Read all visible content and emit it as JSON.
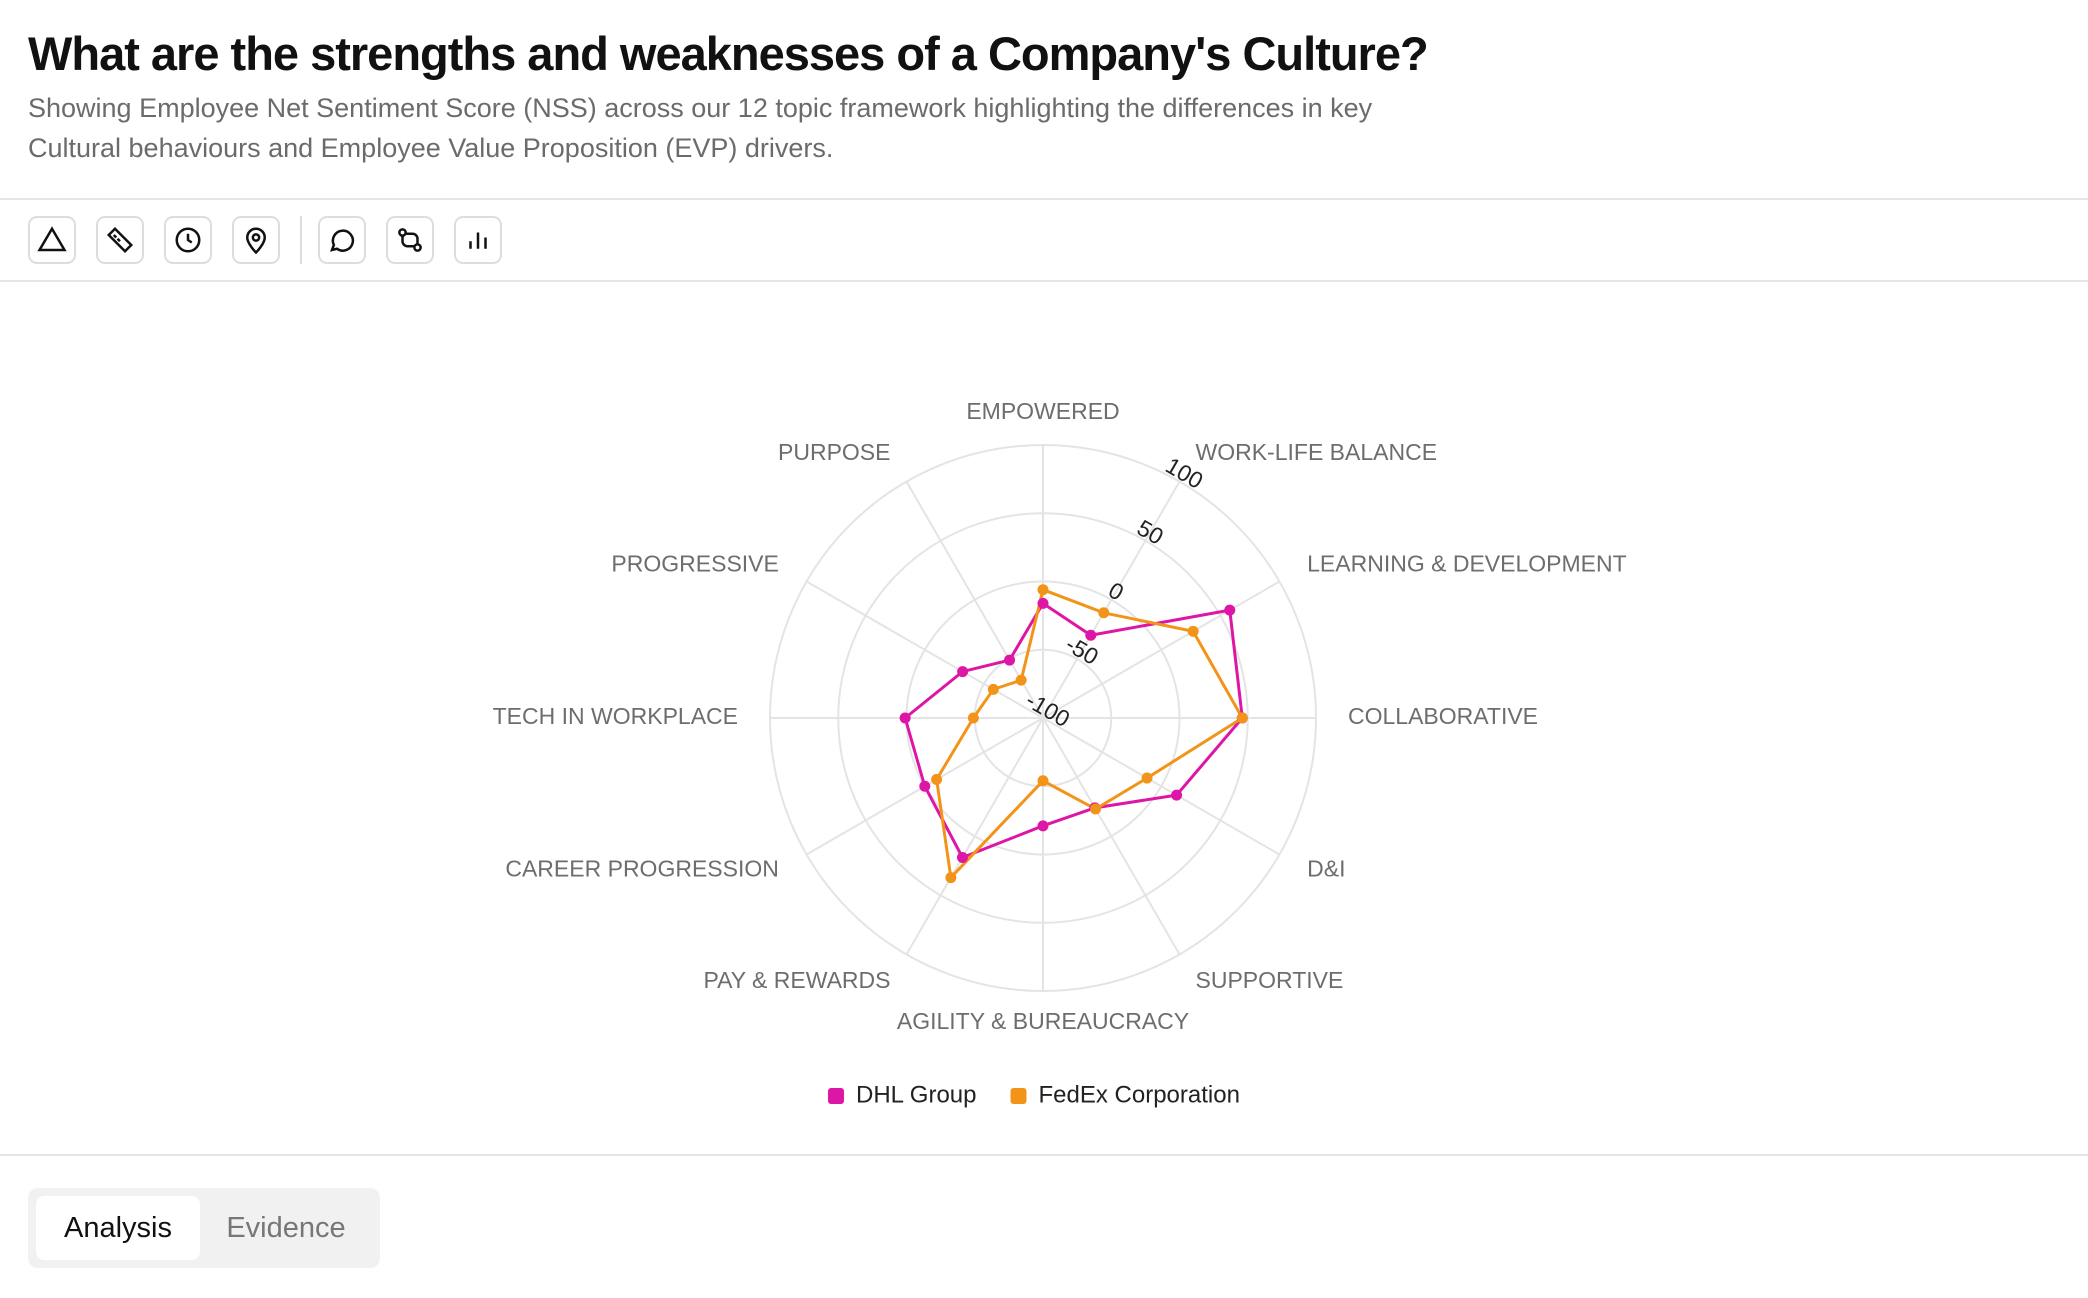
{
  "header": {
    "title": "What are the strengths and weaknesses of a Company's Culture?",
    "subtitle": "Showing Employee Net Sentiment Score (NSS) across our 12 topic framework highlighting the differences in key Cultural behaviours and Employee Value Proposition (EVP) drivers."
  },
  "chart_data": {
    "type": "radar",
    "categories": [
      "EMPOWERED",
      "WORK-LIFE BALANCE",
      "LEARNING & DEVELOPMENT",
      "COLLABORATIVE",
      "D&I",
      "SUPPORTIVE",
      "AGILITY & BUREAUCRACY",
      "PAY & REWARDS",
      "CAREER PROGRESSION",
      "TECH IN WORKPLACE",
      "PROGRESSIVE",
      "PURPOSE"
    ],
    "series": [
      {
        "name": "DHL Group",
        "color": "#dd16a6",
        "values": [
          -16,
          -30,
          58,
          46,
          13,
          -24,
          -21,
          18,
          0,
          1,
          -32,
          -51
        ]
      },
      {
        "name": "FedEx Corporation",
        "color": "#f3941a",
        "values": [
          -6,
          -11,
          27,
          46,
          -12,
          -23,
          -54,
          35,
          -10,
          -49,
          -58,
          -68
        ]
      }
    ],
    "rlim": [
      -100,
      100
    ],
    "rticks": [
      -100,
      -50,
      0,
      50,
      100
    ],
    "grid": true
  },
  "tabs": [
    "Analysis",
    "Evidence"
  ]
}
